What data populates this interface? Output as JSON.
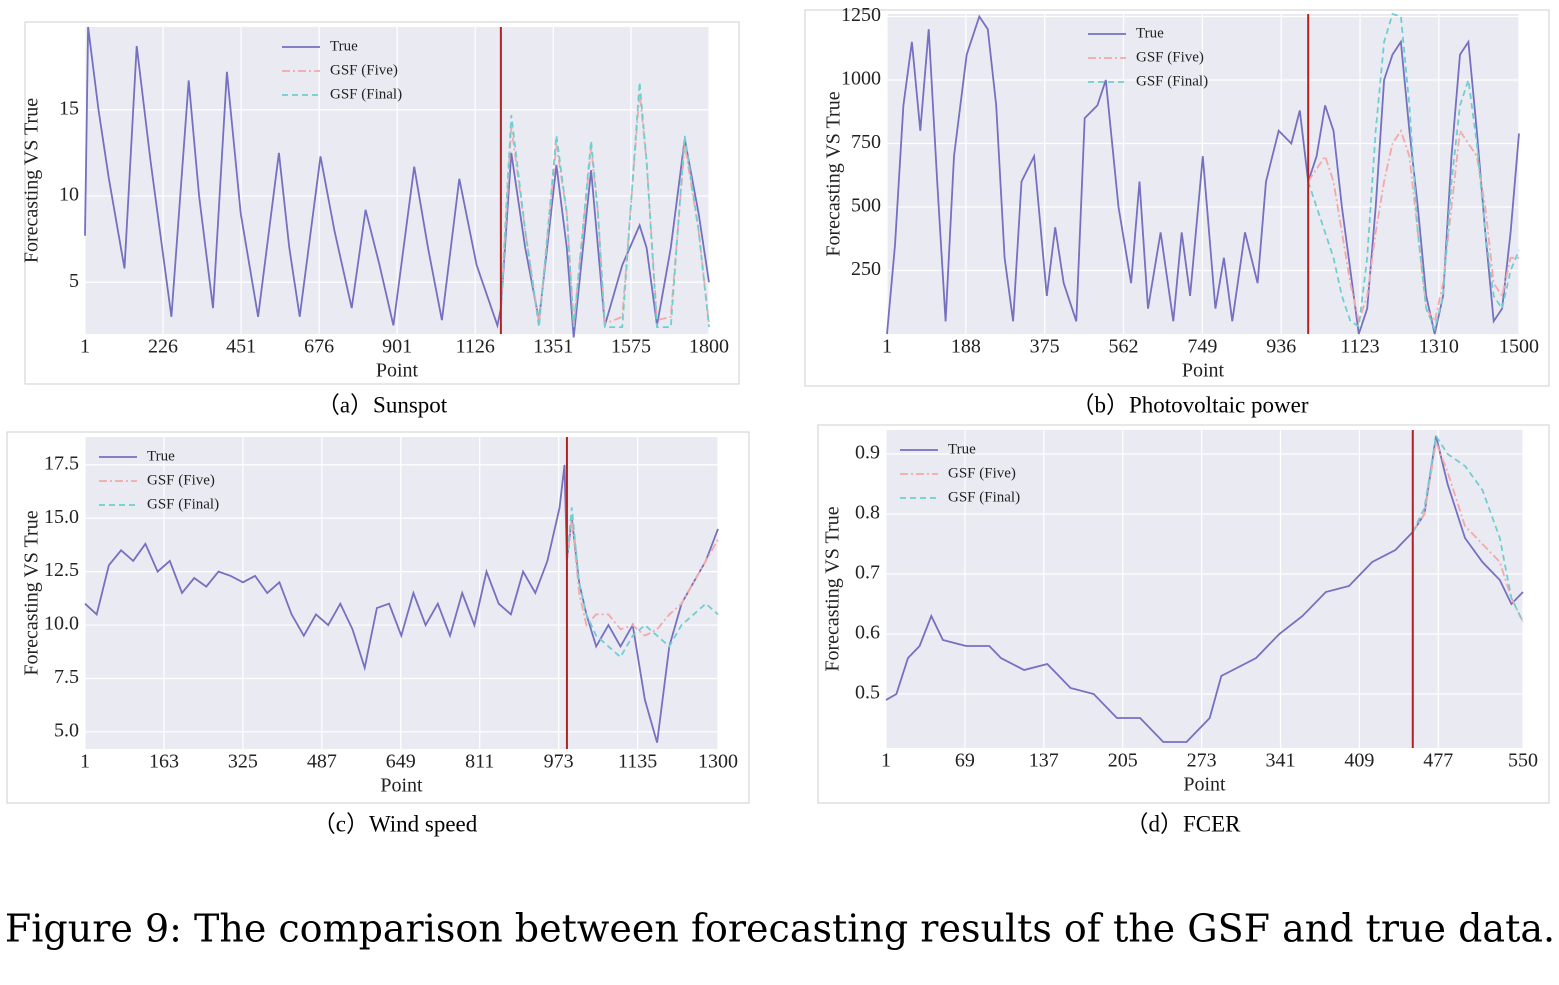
{
  "caption": "Figure 9: The comparison between forecasting results of the GSF and true data.",
  "chart_data": [
    {
      "type": "line",
      "caption": "（a）Sunspot",
      "xlabel": "Point",
      "ylabel": "Forecasting VS True",
      "grid": true,
      "legend": "upper center",
      "vline": 1200,
      "vline_color": "#b22222",
      "xlim": [
        1,
        1800
      ],
      "xticks": [
        1,
        226,
        451,
        676,
        901,
        1126,
        1351,
        1575,
        1800
      ],
      "ylim": [
        2,
        19.8
      ],
      "yticks": [
        5,
        10,
        15
      ],
      "x": [
        1,
        10,
        40,
        70,
        115,
        150,
        190,
        250,
        300,
        330,
        370,
        410,
        450,
        500,
        560,
        590,
        620,
        680,
        720,
        770,
        810,
        850,
        890,
        950,
        990,
        1030,
        1080,
        1130,
        1190,
        1200,
        1230,
        1270,
        1310,
        1360,
        1390,
        1410,
        1460,
        1480,
        1500,
        1550,
        1600,
        1620,
        1650,
        1690,
        1730,
        1770,
        1800
      ],
      "series": [
        {
          "name": "True",
          "color": "#7570c0",
          "linestyle": "solid",
          "values": [
            7.7,
            19.8,
            15,
            11,
            5.8,
            18.7,
            12,
            3,
            16.7,
            10,
            3.5,
            17.2,
            9,
            3,
            12.5,
            7,
            3,
            12.3,
            8,
            3.5,
            9.2,
            6,
            2.5,
            11.7,
            7,
            2.8,
            11,
            6,
            2.5,
            3.5,
            12.5,
            7,
            2.8,
            11.8,
            7,
            1.8,
            11.5,
            7,
            2.5,
            6,
            8.3,
            7,
            2.5,
            7,
            13.3,
            9,
            5
          ]
        },
        {
          "name": "GSF (Five)",
          "color": "#f4a9a8",
          "linestyle": "dashdot",
          "values": [
            null,
            null,
            null,
            null,
            null,
            null,
            null,
            null,
            null,
            null,
            null,
            null,
            null,
            null,
            null,
            null,
            null,
            null,
            null,
            null,
            null,
            null,
            null,
            null,
            null,
            null,
            null,
            null,
            null,
            3.5,
            14,
            8,
            2.6,
            13,
            9,
            2.6,
            12.8,
            9,
            2.6,
            3,
            16,
            12,
            2.8,
            3,
            13,
            8,
            2.6
          ]
        },
        {
          "name": "GSF (Final)",
          "color": "#6fcfd0",
          "linestyle": "dashed",
          "values": [
            null,
            null,
            null,
            null,
            null,
            null,
            null,
            null,
            null,
            null,
            null,
            null,
            null,
            null,
            null,
            null,
            null,
            null,
            null,
            null,
            null,
            null,
            null,
            null,
            null,
            null,
            null,
            null,
            null,
            3.5,
            14.7,
            8,
            2.4,
            13.5,
            9,
            2.4,
            13.2,
            9,
            2.4,
            2.4,
            16.6,
            12,
            2.4,
            2.4,
            13.5,
            8,
            2.4
          ]
        }
      ]
    },
    {
      "type": "line",
      "caption": "（b）Photovoltaic power",
      "xlabel": "Point",
      "ylabel": "Forecasting VS True",
      "grid": true,
      "legend": "upper center",
      "vline": 1000,
      "vline_color": "#b22222",
      "xlim": [
        1,
        1500
      ],
      "xticks": [
        1,
        188,
        375,
        562,
        749,
        936,
        1123,
        1310,
        1500
      ],
      "ylim": [
        0,
        1260
      ],
      "yticks": [
        250,
        500,
        750,
        1000,
        1250
      ],
      "x": [
        1,
        20,
        40,
        60,
        80,
        100,
        120,
        140,
        160,
        190,
        220,
        240,
        260,
        280,
        300,
        320,
        350,
        380,
        400,
        420,
        450,
        470,
        500,
        520,
        550,
        580,
        600,
        620,
        650,
        680,
        700,
        720,
        750,
        780,
        800,
        820,
        850,
        880,
        900,
        930,
        960,
        980,
        1000,
        1020,
        1040,
        1060,
        1080,
        1100,
        1120,
        1140,
        1160,
        1180,
        1200,
        1220,
        1240,
        1260,
        1280,
        1300,
        1320,
        1340,
        1360,
        1380,
        1400,
        1420,
        1440,
        1460,
        1480,
        1500
      ],
      "series": [
        {
          "name": "True",
          "color": "#7570c0",
          "linestyle": "solid",
          "values": [
            0,
            350,
            900,
            1150,
            800,
            1200,
            600,
            50,
            700,
            1100,
            1250,
            1200,
            900,
            300,
            50,
            600,
            700,
            150,
            420,
            200,
            50,
            850,
            900,
            1000,
            500,
            200,
            600,
            100,
            400,
            50,
            400,
            150,
            700,
            100,
            300,
            50,
            400,
            200,
            600,
            800,
            750,
            880,
            600,
            700,
            900,
            800,
            500,
            250,
            0,
            100,
            500,
            1000,
            1100,
            1150,
            800,
            500,
            150,
            0,
            150,
            700,
            1100,
            1150,
            800,
            400,
            50,
            100,
            400,
            790
          ]
        },
        {
          "name": "GSF (Five)",
          "color": "#f4a9a8",
          "linestyle": "dashdot",
          "values": [
            null,
            null,
            null,
            null,
            null,
            null,
            null,
            null,
            null,
            null,
            null,
            null,
            null,
            null,
            null,
            null,
            null,
            null,
            null,
            null,
            null,
            null,
            null,
            null,
            null,
            null,
            null,
            null,
            null,
            null,
            null,
            null,
            null,
            null,
            null,
            null,
            null,
            null,
            null,
            null,
            null,
            null,
            600,
            650,
            700,
            600,
            400,
            200,
            50,
            150,
            400,
            600,
            750,
            800,
            700,
            400,
            100,
            50,
            200,
            500,
            800,
            750,
            700,
            500,
            200,
            150,
            300,
            300
          ]
        },
        {
          "name": "GSF (Final)",
          "color": "#6fcfd0",
          "linestyle": "dashed",
          "values": [
            null,
            null,
            null,
            null,
            null,
            null,
            null,
            null,
            null,
            null,
            null,
            null,
            null,
            null,
            null,
            null,
            null,
            null,
            null,
            null,
            null,
            null,
            null,
            null,
            null,
            null,
            null,
            null,
            null,
            null,
            null,
            null,
            null,
            null,
            null,
            null,
            null,
            null,
            null,
            null,
            null,
            null,
            600,
            500,
            400,
            300,
            150,
            50,
            30,
            300,
            800,
            1150,
            1260,
            1250,
            900,
            400,
            100,
            20,
            150,
            600,
            900,
            1000,
            750,
            400,
            150,
            100,
            250,
            330
          ]
        }
      ]
    },
    {
      "type": "line",
      "caption": "（c）Wind speed",
      "xlabel": "Point",
      "ylabel": "Forecasting VS True",
      "grid": true,
      "legend": "upper left",
      "vline": 990,
      "vline_color": "#b22222",
      "xlim": [
        1,
        1300
      ],
      "xticks": [
        1,
        163,
        325,
        487,
        649,
        811,
        973,
        1135,
        1300
      ],
      "ylim": [
        4.2,
        18.8
      ],
      "yticks": [
        {
          "value": 5,
          "label": "5.0"
        },
        7.5,
        {
          "value": 10,
          "label": "10.0"
        },
        12.5,
        {
          "value": 15,
          "label": "15.0"
        },
        17.5
      ],
      "x": [
        1,
        25,
        50,
        75,
        100,
        125,
        150,
        175,
        200,
        225,
        250,
        275,
        300,
        325,
        350,
        375,
        400,
        425,
        450,
        475,
        500,
        525,
        550,
        575,
        600,
        625,
        650,
        675,
        700,
        725,
        750,
        775,
        800,
        825,
        850,
        875,
        900,
        925,
        950,
        975,
        985,
        990,
        1000,
        1015,
        1030,
        1050,
        1075,
        1100,
        1125,
        1150,
        1175,
        1200,
        1225,
        1250,
        1275,
        1300
      ],
      "series": [
        {
          "name": "True",
          "color": "#7570c0",
          "linestyle": "solid",
          "values": [
            11,
            10.5,
            12.8,
            13.5,
            13,
            13.8,
            12.5,
            13,
            11.5,
            12.2,
            11.8,
            12.5,
            12.3,
            12,
            12.3,
            11.5,
            12,
            10.5,
            9.5,
            10.5,
            10,
            11,
            9.8,
            8,
            10.8,
            11,
            9.5,
            11.5,
            10,
            11,
            9.5,
            11.5,
            10,
            12.5,
            11,
            10.5,
            12.5,
            11.5,
            13,
            15.5,
            17.5,
            13,
            15,
            12,
            10.5,
            9,
            10,
            9,
            10,
            6.5,
            4.5,
            9,
            11,
            12,
            13,
            14.5
          ]
        },
        {
          "name": "GSF (Five)",
          "color": "#f4a9a8",
          "linestyle": "dashdot",
          "values": [
            null,
            null,
            null,
            null,
            null,
            null,
            null,
            null,
            null,
            null,
            null,
            null,
            null,
            null,
            null,
            null,
            null,
            null,
            null,
            null,
            null,
            null,
            null,
            null,
            null,
            null,
            null,
            null,
            null,
            null,
            null,
            null,
            null,
            null,
            null,
            null,
            null,
            null,
            null,
            null,
            null,
            13,
            15,
            11.5,
            10,
            10.5,
            10.5,
            9.8,
            10,
            9.5,
            9.8,
            10.5,
            11,
            12,
            13,
            14
          ]
        },
        {
          "name": "GSF (Final)",
          "color": "#6fcfd0",
          "linestyle": "dashed",
          "values": [
            null,
            null,
            null,
            null,
            null,
            null,
            null,
            null,
            null,
            null,
            null,
            null,
            null,
            null,
            null,
            null,
            null,
            null,
            null,
            null,
            null,
            null,
            null,
            null,
            null,
            null,
            null,
            null,
            null,
            null,
            null,
            null,
            null,
            null,
            null,
            null,
            null,
            null,
            null,
            null,
            null,
            13,
            15.5,
            12,
            10.5,
            9.5,
            9,
            8.5,
            9.5,
            10,
            9.5,
            9,
            10,
            10.5,
            11,
            10.5
          ]
        }
      ]
    },
    {
      "type": "line",
      "caption": "（d）FCER",
      "xlabel": "Point",
      "ylabel": "Forecasting VS True",
      "grid": true,
      "legend": "upper left",
      "vline": 455,
      "vline_color": "#b22222",
      "xlim": [
        1,
        550
      ],
      "xticks": [
        1,
        69,
        137,
        205,
        273,
        341,
        409,
        477,
        550
      ],
      "ylim": [
        0.41,
        0.94
      ],
      "yticks": [
        0.5,
        0.6,
        0.7,
        0.8,
        0.9
      ],
      "x": [
        1,
        10,
        20,
        30,
        40,
        50,
        60,
        70,
        80,
        90,
        100,
        120,
        140,
        160,
        180,
        200,
        220,
        240,
        260,
        280,
        290,
        300,
        320,
        340,
        360,
        380,
        400,
        420,
        440,
        455,
        465,
        475,
        485,
        500,
        515,
        530,
        540,
        550
      ],
      "series": [
        {
          "name": "True",
          "color": "#7570c0",
          "linestyle": "solid",
          "values": [
            0.49,
            0.5,
            0.56,
            0.58,
            0.63,
            0.59,
            0.585,
            0.58,
            0.58,
            0.58,
            0.56,
            0.54,
            0.55,
            0.51,
            0.5,
            0.46,
            0.46,
            0.42,
            0.42,
            0.46,
            0.53,
            0.54,
            0.56,
            0.6,
            0.63,
            0.67,
            0.68,
            0.72,
            0.74,
            0.77,
            0.8,
            0.93,
            0.85,
            0.76,
            0.72,
            0.69,
            0.65,
            0.67
          ]
        },
        {
          "name": "GSF (Five)",
          "color": "#f4a9a8",
          "linestyle": "dashdot",
          "values": [
            null,
            null,
            null,
            null,
            null,
            null,
            null,
            null,
            null,
            null,
            null,
            null,
            null,
            null,
            null,
            null,
            null,
            null,
            null,
            null,
            null,
            null,
            null,
            null,
            null,
            null,
            null,
            null,
            null,
            0.77,
            0.8,
            0.92,
            0.87,
            0.78,
            0.75,
            0.72,
            0.66,
            0.62
          ]
        },
        {
          "name": "GSF (Final)",
          "color": "#6fcfd0",
          "linestyle": "dashed",
          "values": [
            null,
            null,
            null,
            null,
            null,
            null,
            null,
            null,
            null,
            null,
            null,
            null,
            null,
            null,
            null,
            null,
            null,
            null,
            null,
            null,
            null,
            null,
            null,
            null,
            null,
            null,
            null,
            null,
            null,
            0.77,
            0.81,
            0.93,
            0.9,
            0.88,
            0.84,
            0.76,
            0.66,
            0.62
          ]
        }
      ]
    }
  ]
}
